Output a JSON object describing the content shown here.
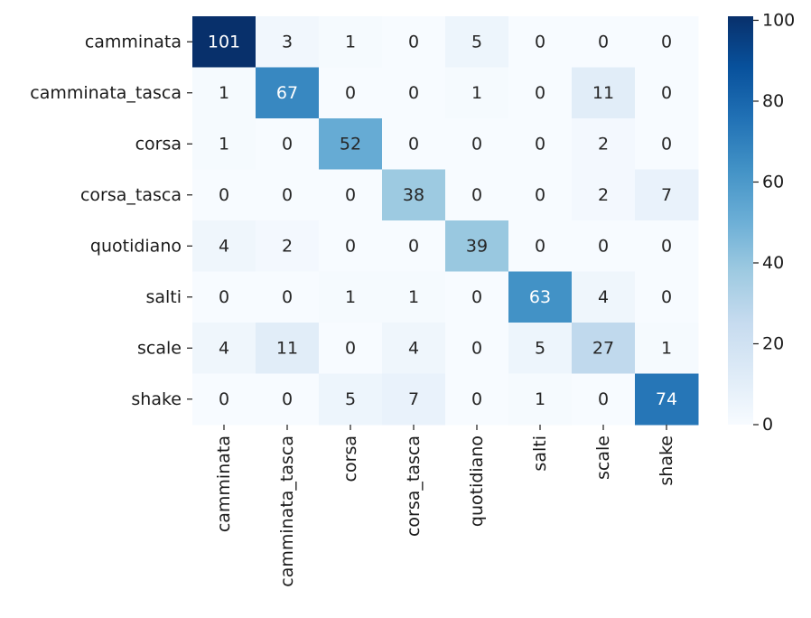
{
  "chart_data": {
    "type": "heatmap",
    "title": "",
    "xlabel": "",
    "ylabel": "",
    "row_labels": [
      "camminata",
      "camminata_tasca",
      "corsa",
      "corsa_tasca",
      "quotidiano",
      "salti",
      "scale",
      "shake"
    ],
    "col_labels": [
      "camminata",
      "camminata_tasca",
      "corsa",
      "corsa_tasca",
      "quotidiano",
      "salti",
      "scale",
      "shake"
    ],
    "matrix": [
      [
        101,
        3,
        1,
        0,
        5,
        0,
        0,
        0
      ],
      [
        1,
        67,
        0,
        0,
        1,
        0,
        11,
        0
      ],
      [
        1,
        0,
        52,
        0,
        0,
        0,
        2,
        0
      ],
      [
        0,
        0,
        0,
        38,
        0,
        0,
        2,
        7
      ],
      [
        4,
        2,
        0,
        0,
        39,
        0,
        0,
        0
      ],
      [
        0,
        0,
        1,
        1,
        0,
        63,
        4,
        0
      ],
      [
        4,
        11,
        0,
        4,
        0,
        5,
        27,
        1
      ],
      [
        0,
        0,
        5,
        7,
        0,
        1,
        0,
        74
      ]
    ],
    "colorbar": {
      "min": 0,
      "max": 101,
      "ticks": [
        0,
        20,
        40,
        60,
        80,
        100
      ],
      "colormap": "Blues",
      "low_color": "#f7fbff",
      "high_color": "#08306b"
    },
    "annotation_colors": {
      "dark_text": "#262626",
      "light_text": "#ffffff"
    }
  }
}
